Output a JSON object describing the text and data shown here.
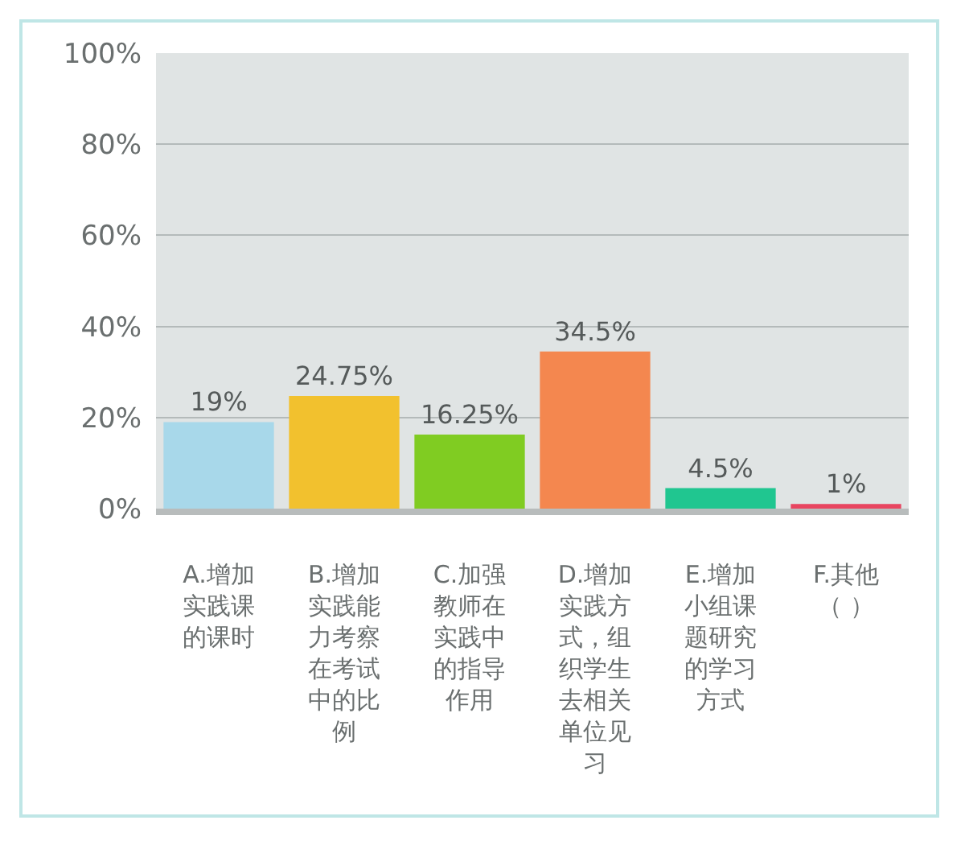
{
  "chart_data": {
    "type": "bar",
    "categories": [
      "A.增加实践课的课时",
      "B.增加实践能力考察在考试中的比例",
      "C.加强教师在实践中的指导作用",
      "D.增加实践方式，组织学生去相关单位见习",
      "E.增加小组课题研究的学习方式",
      "F.其他（ ）"
    ],
    "values": [
      19,
      24.75,
      16.25,
      34.5,
      4.5,
      1
    ],
    "value_labels": [
      "19%",
      "24.75%",
      "16.25%",
      "34.5%",
      "4.5%",
      "1%"
    ],
    "colors": [
      "#a8d8ea",
      "#f2c12e",
      "#80cc22",
      "#f4874f",
      "#20c690",
      "#e84560"
    ],
    "ylim": [
      0,
      100
    ],
    "yticks": [
      {
        "value": 0,
        "label": "0%"
      },
      {
        "value": 20,
        "label": "20%"
      },
      {
        "value": 40,
        "label": "40%"
      },
      {
        "value": 60,
        "label": "60%"
      },
      {
        "value": 80,
        "label": "80%"
      },
      {
        "value": 100,
        "label": "100%"
      }
    ],
    "grid": "y"
  }
}
